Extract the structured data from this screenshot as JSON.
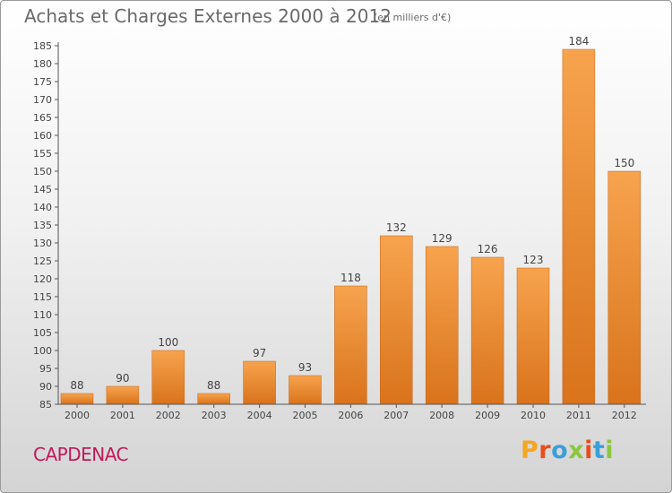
{
  "header": {
    "title": "Achats et Charges Externes 2000 à 2012",
    "unit": "(en milliers d'€)"
  },
  "footer": {
    "city": "CAPDENAC",
    "logo_text": "Proxiti",
    "logo_colors": [
      "#f5a623",
      "#e94e1b",
      "#3aa0d8",
      "#8cc63f",
      "#e94e1b",
      "#3aa0d8",
      "#8cc63f"
    ]
  },
  "colors": {
    "bar_top": "#f7a34e",
    "bar_bottom": "#d9731c",
    "bar_edge": "#c66514",
    "title": "#6a6a6a",
    "city": "#c2185b"
  },
  "chart_data": {
    "type": "bar",
    "title": "Achats et Charges Externes 2000 à 2012",
    "subtitle": "(en milliers d'€)",
    "categories": [
      "2000",
      "2001",
      "2002",
      "2003",
      "2004",
      "2005",
      "2006",
      "2007",
      "2008",
      "2009",
      "2010",
      "2011",
      "2012"
    ],
    "values": [
      88,
      90,
      100,
      88,
      97,
      93,
      118,
      132,
      129,
      126,
      123,
      184,
      150
    ],
    "ylim": [
      85,
      185
    ],
    "yticks": [
      85,
      90,
      95,
      100,
      105,
      110,
      115,
      120,
      125,
      130,
      135,
      140,
      145,
      150,
      155,
      160,
      165,
      170,
      175,
      180,
      185
    ],
    "grid": false,
    "xlabel": "",
    "ylabel": ""
  }
}
